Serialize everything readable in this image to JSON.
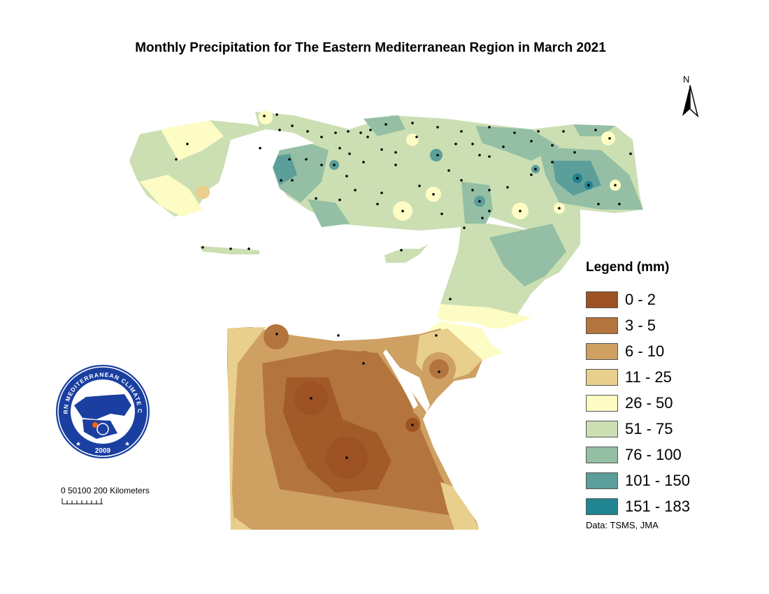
{
  "title": "Monthly Precipitation for The Eastern Mediterranean Region in March 2021",
  "north_label": "N",
  "legend": {
    "title": "Legend (mm)",
    "classes": [
      {
        "label": "0 - 2",
        "color": "#9c5223"
      },
      {
        "label": "3 - 5",
        "color": "#b4743e"
      },
      {
        "label": "6 - 10",
        "color": "#cea062"
      },
      {
        "label": "11 - 25",
        "color": "#e8cf8e"
      },
      {
        "label": "26 - 50",
        "color": "#fdfcc4"
      },
      {
        "label": "51 - 75",
        "color": "#cbdfb3"
      },
      {
        "label": "76 - 100",
        "color": "#94bfa4"
      },
      {
        "label": "101 - 150",
        "color": "#5c9e99"
      },
      {
        "label": "151 - 183",
        "color": "#218491"
      }
    ]
  },
  "data_source": "Data:  TSMS, JMA",
  "scale_bar": {
    "label": "0 50100 200 Kilometers"
  },
  "logo": {
    "text_top": "EASTERN MEDITERRANEAN CLIMATE CENTRE",
    "year": "2009"
  },
  "colors": {
    "land_background": "#ffffff",
    "station_dot": "#000000"
  }
}
